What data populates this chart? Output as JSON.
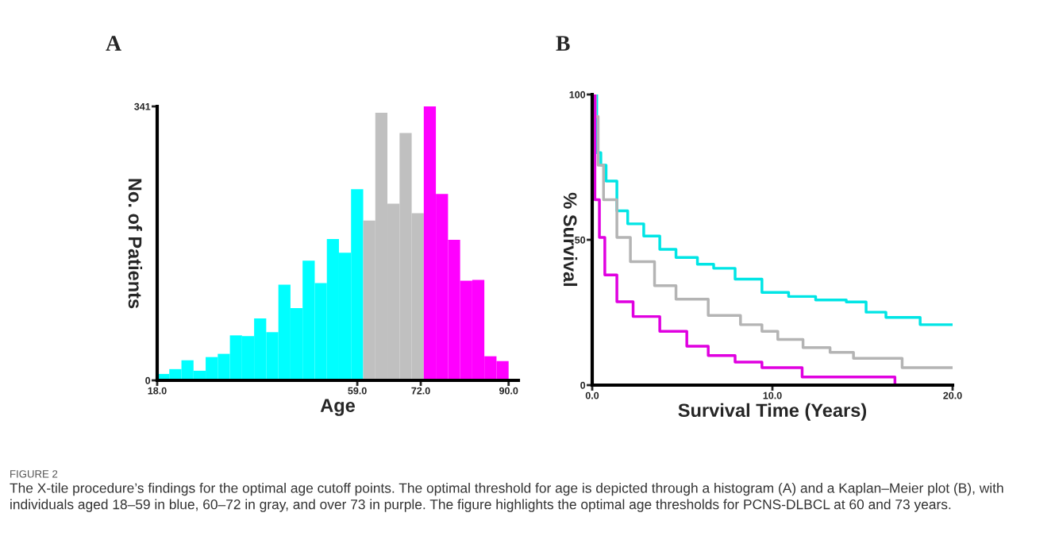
{
  "chart_data": [
    {
      "type": "histogram",
      "title": "A",
      "xlabel": "Age",
      "ylabel": "No. of Patients",
      "bins": [
        18,
        20.48,
        22.97,
        25.45,
        27.93,
        30.41,
        32.9,
        35.38,
        37.86,
        40.34,
        42.83,
        45.31,
        47.79,
        50.28,
        52.76,
        55.24,
        57.72,
        60.21,
        62.69,
        65.17,
        67.66,
        70.14,
        72.62,
        75.1,
        77.59,
        80.07,
        82.55,
        85.03,
        87.52,
        90
      ],
      "series": [
        {
          "color": "#00ffff",
          "values": [
            8,
            14,
            25,
            12,
            29,
            33,
            56,
            55,
            77,
            60,
            119,
            90,
            149,
            121,
            176,
            159,
            238,
            null,
            null,
            null,
            null,
            null,
            null,
            null,
            null,
            null,
            null,
            null,
            null
          ]
        },
        {
          "color": "#c0c0c0",
          "values": [
            null,
            null,
            null,
            null,
            null,
            null,
            null,
            null,
            null,
            null,
            null,
            null,
            null,
            null,
            null,
            null,
            null,
            199,
            333,
            220,
            308,
            208,
            null,
            null,
            null,
            null,
            null,
            null,
            null
          ]
        },
        {
          "color": "#ff00ff",
          "values": [
            null,
            null,
            null,
            null,
            null,
            null,
            null,
            null,
            null,
            null,
            null,
            null,
            null,
            null,
            null,
            null,
            null,
            null,
            null,
            null,
            null,
            null,
            341,
            232,
            175,
            124,
            125,
            30,
            24
          ]
        }
      ],
      "xlim": [
        18,
        92
      ],
      "xticks": [
        {
          "value": 18,
          "label": "18.0"
        },
        {
          "value": 59,
          "label": "59.0"
        },
        {
          "value": 72,
          "label": "72.0"
        },
        {
          "value": 90,
          "label": "90.0"
        }
      ],
      "ylim": [
        0,
        341
      ],
      "yticks": [
        0,
        341
      ],
      "grid": false,
      "legend": false
    },
    {
      "type": "step",
      "title": "B",
      "xlabel": "Survival Time (Years)",
      "ylabel": "% Survival",
      "series": [
        {
          "color": "#00e5e5",
          "x": [
            0,
            0.25,
            0.48,
            0.77,
            1.37,
            1.97,
            2.86,
            3.75,
            4.65,
            5.84,
            6.74,
            7.93,
            9.42,
            10.9,
            12.4,
            14.1,
            15.2,
            16.3,
            18.1,
            18.2,
            20
          ],
          "values": [
            100,
            80,
            75.7,
            70.2,
            60,
            55.5,
            51.3,
            46.7,
            43.9,
            41.6,
            40.2,
            36.5,
            31.9,
            30.5,
            29.3,
            28.6,
            25.1,
            23.3,
            23.3,
            20.8,
            20.8
          ]
        },
        {
          "color": "#b4b4b4",
          "x": [
            0,
            0.18,
            0.33,
            0.63,
            1.37,
            2.12,
            3.46,
            4.65,
            6.44,
            8.23,
            9.42,
            10.3,
            11.7,
            13.2,
            14.5,
            16.7,
            17.2,
            20
          ],
          "values": [
            100,
            92.4,
            75.7,
            63.8,
            50.8,
            42.5,
            34.2,
            29.6,
            24,
            20.8,
            18.5,
            15.7,
            12.9,
            11.3,
            9.2,
            9.2,
            6,
            6
          ]
        },
        {
          "color": "#e000e0",
          "x": [
            0,
            0.15,
            0.4,
            0.7,
            1.37,
            2.27,
            3.75,
            5.25,
            6.44,
            7.93,
            9.42,
            11.65,
            16.8,
            16.8
          ],
          "values": [
            100,
            63.8,
            50.8,
            37.9,
            28.7,
            23.6,
            18.5,
            13.4,
            10.2,
            7.9,
            6,
            2.8,
            2.8,
            0
          ]
        }
      ],
      "xlim": [
        0,
        20
      ],
      "xticks": [
        {
          "value": 0,
          "label": "0.0"
        },
        {
          "value": 10,
          "label": "10.0"
        },
        {
          "value": 20,
          "label": "20.0"
        }
      ],
      "ylim": [
        0,
        100
      ],
      "yticks": [
        0,
        50,
        100
      ],
      "grid": false,
      "legend": false,
      "marker": "none",
      "line_style": "solid",
      "annotations": [
        "FIGURE 2",
        "The X-tile procedure’s findings for the optimal age cutoff points. The optimal threshold for age is depicted through a histogram (A) and a Kaplan–Meier plot (B), with individuals aged 18–59 in blue, 60–72 in gray, and over 73 in purple. The figure highlights the optimal age thresholds for PCNS-DLBCL at 60 and 73 years."
      ]
    }
  ]
}
